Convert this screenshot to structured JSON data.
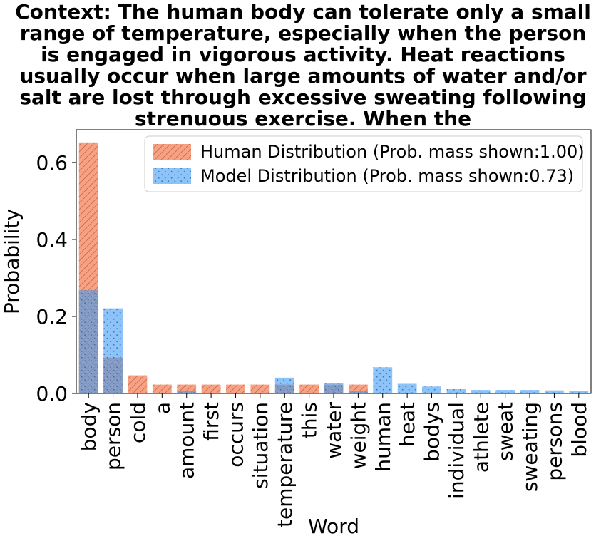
{
  "chart_data": {
    "type": "bar",
    "title_lines": [
      "Context: The human body can tolerate only a small",
      "range of temperature, especially when the person",
      "is engaged in vigorous activity. Heat reactions",
      "usually occur when large amounts of water and/or",
      "salt are lost through excessive sweating following",
      "strenuous exercise. When the"
    ],
    "xlabel": "Word",
    "ylabel": "Probability",
    "ylim": [
      0,
      0.685
    ],
    "yticks": [
      0.0,
      0.2,
      0.4,
      0.6
    ],
    "ytick_labels": [
      "0.0",
      "0.2",
      "0.4",
      "0.6"
    ],
    "categories": [
      "body",
      "person",
      "cold",
      "a",
      "amount",
      "first",
      "occurs",
      "situation",
      "temperature",
      "this",
      "water",
      "weight",
      "human",
      "heat",
      "bodys",
      "individual",
      "athlete",
      "sweat",
      "sweating",
      "persons",
      "blood"
    ],
    "series": [
      {
        "name": "Human Distribution (Prob. mass shown:1.00)",
        "color": "#f4825a",
        "hatch": "diagonal",
        "values": [
          0.652,
          0.093,
          0.047,
          0.023,
          0.023,
          0.023,
          0.023,
          0.023,
          0.023,
          0.023,
          0.023,
          0.023,
          0,
          0,
          0,
          0,
          0,
          0,
          0,
          0,
          0
        ]
      },
      {
        "name": "Model Distribution (Prob. mass shown:0.73)",
        "color": "#3f9cf5",
        "hatch": "dots",
        "values": [
          0.268,
          0.221,
          0.0,
          0.0,
          0.007,
          0.0,
          0.0,
          0.0,
          0.041,
          0.0,
          0.027,
          0.007,
          0.068,
          0.025,
          0.018,
          0.011,
          0.009,
          0.009,
          0.009,
          0.008,
          0.006
        ]
      }
    ],
    "legend_position": "top-right"
  }
}
